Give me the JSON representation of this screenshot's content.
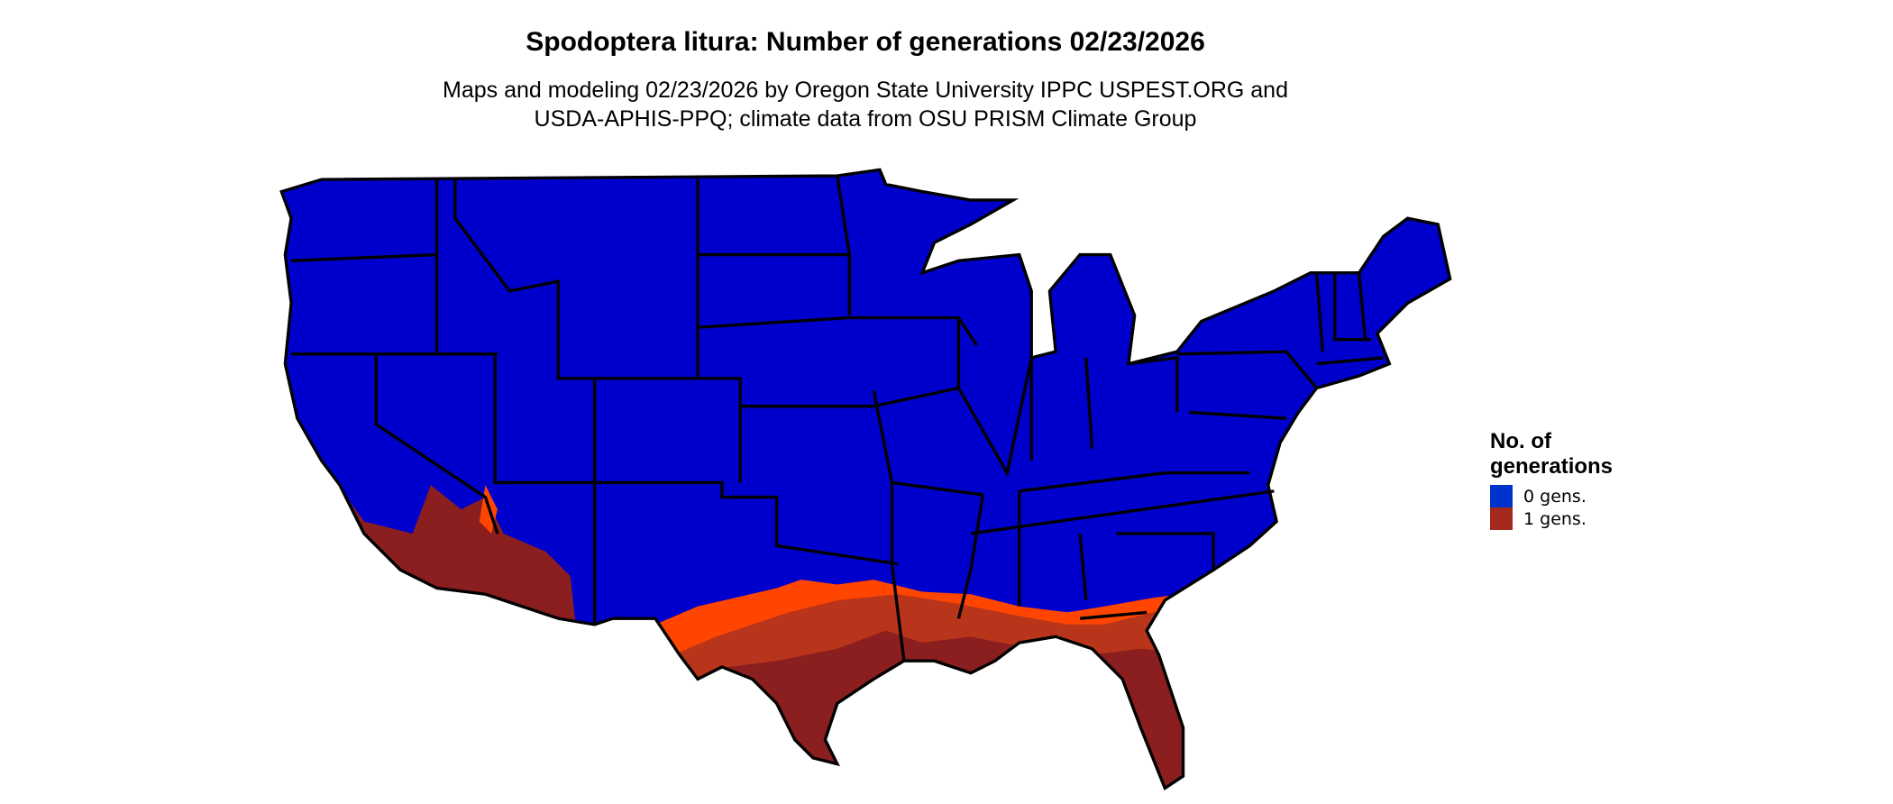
{
  "title": "Spodoptera litura: Number of generations 02/23/2026",
  "subtitle_line1": "Maps and modeling 02/23/2026 by Oregon State University IPPC USPEST.ORG and",
  "subtitle_line2": "USDA-APHIS-PPQ; climate data from OSU PRISM Climate Group",
  "legend": {
    "title_line1": "No. of",
    "title_line2": "generations",
    "items": [
      {
        "label": "0 gens.",
        "color": "#0033CC"
      },
      {
        "label": "1 gens.",
        "color": "#A52A1E"
      }
    ]
  },
  "map_colors": {
    "zero": "#0000CC",
    "one_dark": "#8B1E1E",
    "one_mid": "#B8341A",
    "one_light": "#FF4500",
    "border": "#000000"
  }
}
